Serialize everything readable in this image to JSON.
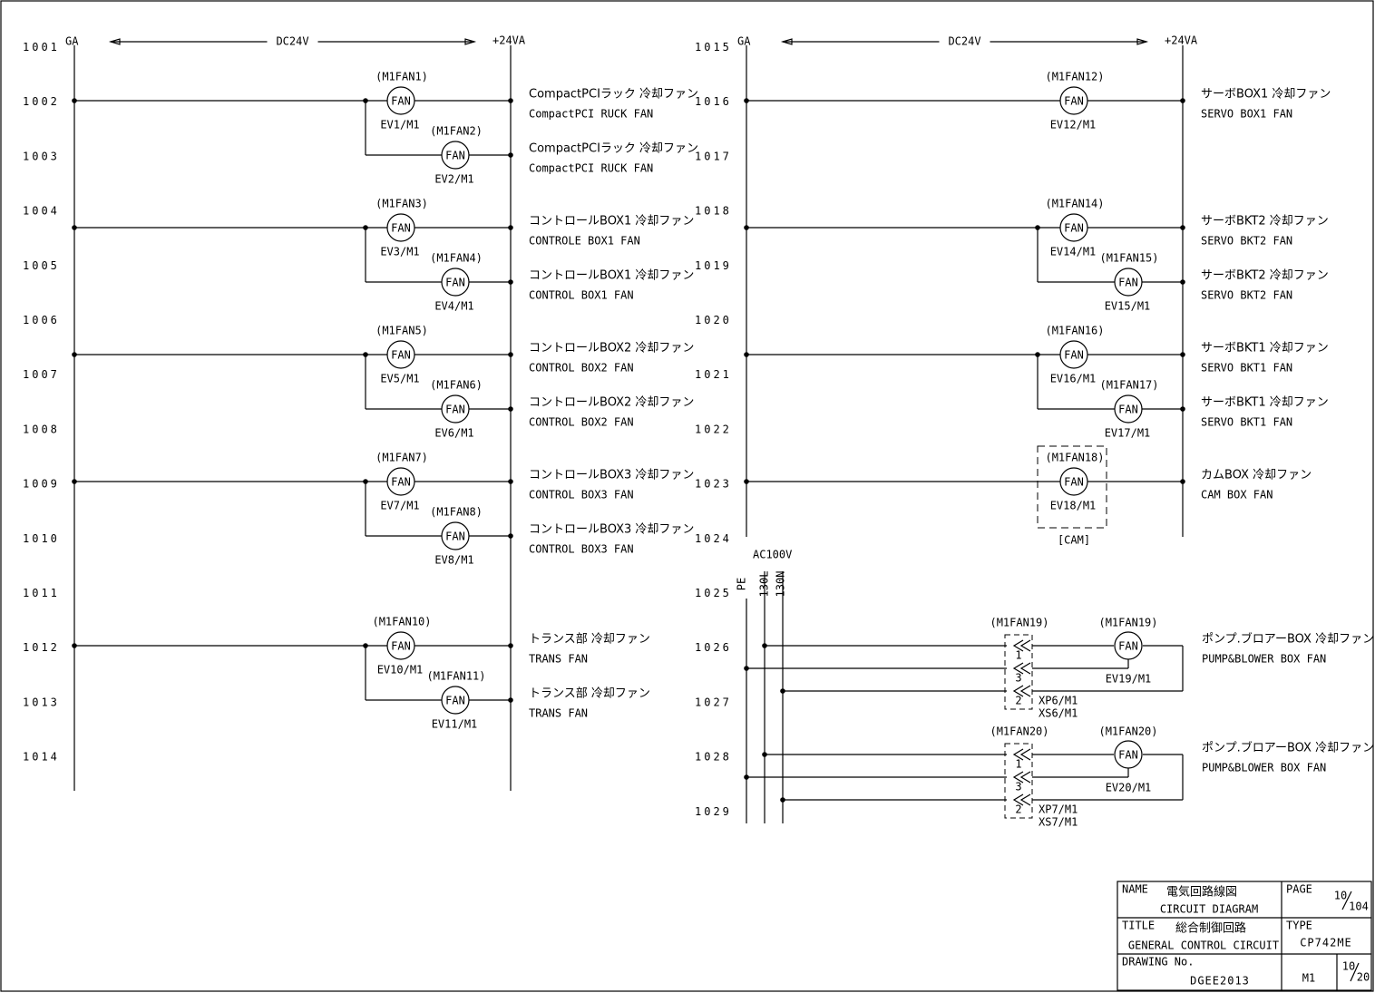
{
  "fan_symbol": "FAN",
  "left": {
    "ga": "GA",
    "voltage": "DC24V",
    "plus": "+24VA",
    "lines": [
      "1001",
      "1002",
      "1003",
      "1004",
      "1005",
      "1006",
      "1007",
      "1008",
      "1009",
      "1010",
      "1011",
      "1012",
      "1013",
      "1014"
    ],
    "fans": [
      {
        "ref": "(M1FAN1)",
        "tag": "EV1/M1",
        "jp": "CompactPCIラック 冷却ファン",
        "en": "CompactPCI RUCK FAN"
      },
      {
        "ref": "(M1FAN2)",
        "tag": "EV2/M1",
        "jp": "CompactPCIラック 冷却ファン",
        "en": "CompactPCI RUCK FAN"
      },
      {
        "ref": "(M1FAN3)",
        "tag": "EV3/M1",
        "jp": "コントロールBOX1 冷却ファン",
        "en": "CONTROLE BOX1 FAN"
      },
      {
        "ref": "(M1FAN4)",
        "tag": "EV4/M1",
        "jp": "コントロールBOX1 冷却ファン",
        "en": "CONTROL BOX1 FAN"
      },
      {
        "ref": "(M1FAN5)",
        "tag": "EV5/M1",
        "jp": "コントロールBOX2 冷却ファン",
        "en": "CONTROL BOX2 FAN"
      },
      {
        "ref": "(M1FAN6)",
        "tag": "EV6/M1",
        "jp": "コントロールBOX2 冷却ファン",
        "en": "CONTROL BOX2 FAN"
      },
      {
        "ref": "(M1FAN7)",
        "tag": "EV7/M1",
        "jp": "コントロールBOX3 冷却ファン",
        "en": "CONTROL BOX3 FAN"
      },
      {
        "ref": "(M1FAN8)",
        "tag": "EV8/M1",
        "jp": "コントロールBOX3 冷却ファン",
        "en": "CONTROL BOX3 FAN"
      },
      {
        "ref": "(M1FAN10)",
        "tag": "EV10/M1",
        "jp": "トランス部 冷却ファン",
        "en": "TRANS FAN"
      },
      {
        "ref": "(M1FAN11)",
        "tag": "EV11/M1",
        "jp": "トランス部 冷却ファン",
        "en": "TRANS FAN"
      }
    ]
  },
  "right": {
    "ga": "GA",
    "voltage": "DC24V",
    "plus": "+24VA",
    "lines": [
      "1015",
      "1016",
      "1017",
      "1018",
      "1019",
      "1020",
      "1021",
      "1022",
      "1023",
      "1024",
      "1025",
      "1026",
      "1027",
      "1028",
      "1029"
    ],
    "fans": [
      {
        "ref": "(M1FAN12)",
        "tag": "EV12/M1",
        "jp": "サーボBOX1 冷却ファン",
        "en": "SERVO BOX1 FAN"
      },
      {
        "ref": "(M1FAN14)",
        "tag": "EV14/M1",
        "jp": "サーボBKT2 冷却ファン",
        "en": "SERVO BKT2 FAN"
      },
      {
        "ref": "(M1FAN15)",
        "tag": "EV15/M1",
        "jp": "サーボBKT2 冷却ファン",
        "en": "SERVO BKT2 FAN"
      },
      {
        "ref": "(M1FAN16)",
        "tag": "EV16/M1",
        "jp": "サーボBKT1 冷却ファン",
        "en": "SERVO BKT1 FAN"
      },
      {
        "ref": "(M1FAN17)",
        "tag": "EV17/M1",
        "jp": "サーボBKT1 冷却ファン",
        "en": "SERVO BKT1 FAN"
      },
      {
        "ref": "(M1FAN18)",
        "tag": "EV18/M1",
        "jp": "カムBOX 冷却ファン",
        "en": "CAM BOX FAN"
      }
    ],
    "cam": "[CAM]"
  },
  "ac": {
    "voltage": "AC100V",
    "pe": "PE",
    "l": "130L",
    "n": "130N"
  },
  "pumps": [
    {
      "ref_connector": "(M1FAN19)",
      "ref_fan": "(M1FAN19)",
      "pins": [
        "1",
        "3",
        "2"
      ],
      "xp": "XP6/M1",
      "xs": "XS6/M1",
      "tag": "EV19/M1",
      "jp": "ポンプ.ブロアーBOX 冷却ファン",
      "en": "PUMP&BLOWER BOX FAN"
    },
    {
      "ref_connector": "(M1FAN20)",
      "ref_fan": "(M1FAN20)",
      "pins": [
        "1",
        "3",
        "2"
      ],
      "xp": "XP7/M1",
      "xs": "XS7/M1",
      "tag": "EV20/M1",
      "jp": "ポンプ.ブロアーBOX 冷却ファン",
      "en": "PUMP&BLOWER BOX FAN"
    }
  ],
  "title_block": {
    "name_label": "NAME",
    "name_jp": "電気回路線図",
    "name_en": "CIRCUIT DIAGRAM",
    "page_label": "PAGE",
    "page_num": "10",
    "page_total": "104",
    "title_label": "TITLE",
    "title_jp": "総合制御回路",
    "title_en": "GENERAL CONTROL CIRCUIT",
    "type_label": "TYPE",
    "type": "CP742ME",
    "drawing_label": "DRAWING No.",
    "drawing_no": "DGEE2013",
    "sheet": "M1",
    "sheet_num": "10",
    "sheet_total": "20"
  }
}
